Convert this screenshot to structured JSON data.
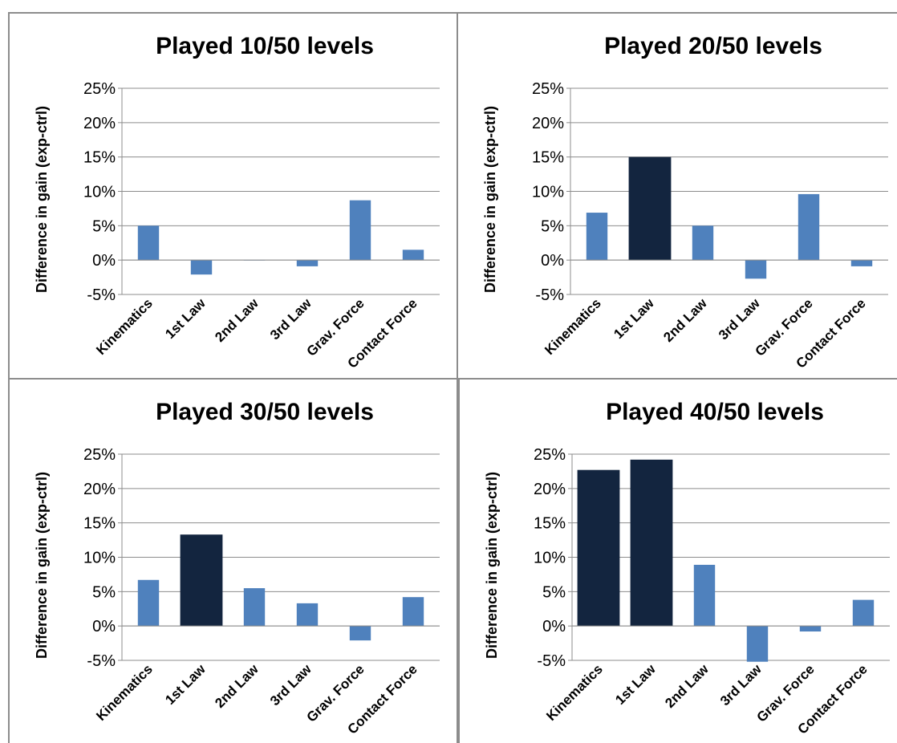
{
  "colors": {
    "normal": "#4f81bd",
    "highlight": "#13253f",
    "grid": "#8c8c8c",
    "frame": "#8c8c8c"
  },
  "chart_data": [
    {
      "type": "bar",
      "title": "Played 10/50 levels",
      "ylabel": "Difference in gain (exp-ctrl)",
      "ylim": [
        -0.05,
        0.25
      ],
      "yticks": [
        "25%",
        "20%",
        "15%",
        "10%",
        "5%",
        "0%",
        "-5%"
      ],
      "grid": true,
      "categories": [
        "Kinematics",
        "1st Law",
        "2nd Law",
        "3rd Law",
        "Grav. Force",
        "Contact Force"
      ],
      "values": [
        0.05,
        -0.021,
        0.0,
        -0.009,
        0.087,
        0.015
      ],
      "highlight": [
        false,
        false,
        false,
        false,
        false,
        false
      ]
    },
    {
      "type": "bar",
      "title": "Played 20/50 levels",
      "ylabel": "Difference in gain (exp-ctrl)",
      "ylim": [
        -0.05,
        0.25
      ],
      "yticks": [
        "25%",
        "20%",
        "15%",
        "10%",
        "5%",
        "0%",
        "-5%"
      ],
      "grid": true,
      "categories": [
        "Kinematics",
        "1st Law",
        "2nd Law",
        "3rd Law",
        "Grav. Force",
        "Contact Force"
      ],
      "values": [
        0.069,
        0.15,
        0.05,
        -0.027,
        0.096,
        -0.009
      ],
      "highlight": [
        false,
        true,
        false,
        false,
        false,
        false
      ]
    },
    {
      "type": "bar",
      "title": "Played 30/50 levels",
      "ylabel": "Difference in gain (exp-ctrl)",
      "ylim": [
        -0.05,
        0.25
      ],
      "yticks": [
        "25%",
        "20%",
        "15%",
        "10%",
        "5%",
        "0%",
        "-5%"
      ],
      "grid": true,
      "categories": [
        "Kinematics",
        "1st Law",
        "2nd Law",
        "3rd Law",
        "Grav. Force",
        "Contact Force"
      ],
      "values": [
        0.067,
        0.133,
        0.055,
        0.033,
        -0.021,
        0.042
      ],
      "highlight": [
        false,
        true,
        false,
        false,
        false,
        false
      ]
    },
    {
      "type": "bar",
      "title": "Played 40/50 levels",
      "ylabel": "Difference in gain (exp-ctrl)",
      "ylim": [
        -0.05,
        0.25
      ],
      "yticks": [
        "25%",
        "20%",
        "15%",
        "10%",
        "5%",
        "0%",
        "-5%"
      ],
      "grid": true,
      "categories": [
        "Kinematics",
        "1st Law",
        "2nd Law",
        "3rd Law",
        "Grav. Force",
        "Contact Force"
      ],
      "values": [
        0.227,
        0.242,
        0.089,
        -0.052,
        -0.008,
        0.038
      ],
      "highlight": [
        true,
        true,
        false,
        false,
        false,
        false
      ]
    }
  ]
}
